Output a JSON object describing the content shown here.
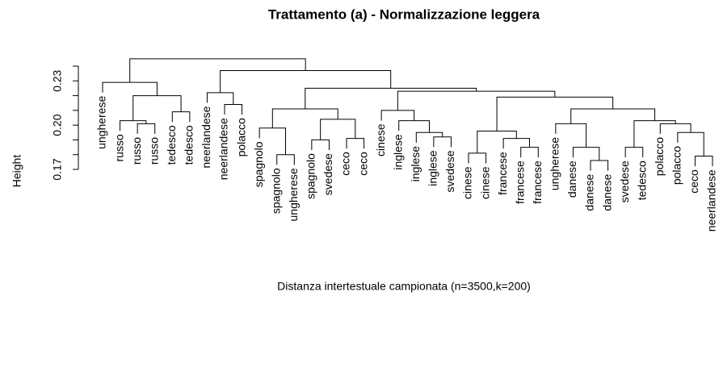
{
  "chart_data": {
    "type": "dendrogram",
    "title": "Trattamento (a) - Normalizzazione leggera",
    "x_label": "Distanza intertestuale campionata (n=3500,k=200)",
    "y_label": "Height",
    "ylim": [
      0.17,
      0.24
    ],
    "yticks": [
      0.17,
      {
        "value": 0.2,
        "label": "0.20"
      },
      0.23
    ],
    "yticks_minor": [
      0.18,
      0.19,
      0.21,
      0.22,
      0.24
    ],
    "color": "#000000",
    "tree": {
      "height": 0.245,
      "children": [
        {
          "height": 0.229,
          "children": [
            {
              "label": "ungherese"
            },
            {
              "height": 0.22,
              "children": [
                {
                  "height": 0.203,
                  "children": [
                    {
                      "label": "russo"
                    },
                    {
                      "height": 0.201,
                      "children": [
                        {
                          "label": "russo"
                        },
                        {
                          "label": "russo"
                        }
                      ]
                    }
                  ]
                },
                {
                  "height": 0.209,
                  "children": [
                    {
                      "label": "tedesco"
                    },
                    {
                      "label": "tedesco"
                    }
                  ]
                }
              ]
            }
          ]
        },
        {
          "height": 0.237,
          "children": [
            {
              "height": 0.222,
              "children": [
                {
                  "label": "neerlandese"
                },
                {
                  "height": 0.214,
                  "children": [
                    {
                      "label": "neerlandese"
                    },
                    {
                      "label": "polacco"
                    }
                  ]
                }
              ]
            },
            {
              "height": 0.225,
              "children": [
                {
                  "height": 0.211,
                  "children": [
                    {
                      "height": 0.198,
                      "children": [
                        {
                          "label": "spagnolo"
                        },
                        {
                          "height": 0.18,
                          "children": [
                            {
                              "label": "spagnolo"
                            },
                            {
                              "label": "ungherese"
                            }
                          ]
                        }
                      ]
                    },
                    {
                      "height": 0.204,
                      "children": [
                        {
                          "height": 0.19,
                          "children": [
                            {
                              "label": "spagnolo"
                            },
                            {
                              "label": "svedese"
                            }
                          ]
                        },
                        {
                          "height": 0.191,
                          "children": [
                            {
                              "label": "ceco"
                            },
                            {
                              "label": "ceco"
                            }
                          ]
                        }
                      ]
                    }
                  ]
                },
                {
                  "height": 0.223,
                  "children": [
                    {
                      "height": 0.21,
                      "children": [
                        {
                          "label": "cinese"
                        },
                        {
                          "height": 0.203,
                          "children": [
                            {
                              "label": "inglese"
                            },
                            {
                              "height": 0.195,
                              "children": [
                                {
                                  "label": "inglese"
                                },
                                {
                                  "height": 0.192,
                                  "children": [
                                    {
                                      "label": "inglese"
                                    },
                                    {
                                      "label": "svedese"
                                    }
                                  ]
                                }
                              ]
                            }
                          ]
                        }
                      ]
                    },
                    {
                      "height": 0.219,
                      "children": [
                        {
                          "height": 0.196,
                          "children": [
                            {
                              "height": 0.181,
                              "children": [
                                {
                                  "label": "cinese"
                                },
                                {
                                  "label": "cinese"
                                }
                              ]
                            },
                            {
                              "height": 0.191,
                              "children": [
                                {
                                  "label": "francese"
                                },
                                {
                                  "height": 0.185,
                                  "children": [
                                    {
                                      "label": "francese"
                                    },
                                    {
                                      "label": "francese"
                                    }
                                  ]
                                }
                              ]
                            }
                          ]
                        },
                        {
                          "height": 0.211,
                          "children": [
                            {
                              "height": 0.201,
                              "children": [
                                {
                                  "label": "ungherese"
                                },
                                {
                                  "height": 0.185,
                                  "children": [
                                    {
                                      "label": "danese"
                                    },
                                    {
                                      "height": 0.176,
                                      "children": [
                                        {
                                          "label": "danese"
                                        },
                                        {
                                          "label": "danese"
                                        }
                                      ]
                                    }
                                  ]
                                }
                              ]
                            },
                            {
                              "height": 0.203,
                              "children": [
                                {
                                  "height": 0.185,
                                  "children": [
                                    {
                                      "label": "svedese"
                                    },
                                    {
                                      "label": "tedesco"
                                    }
                                  ]
                                },
                                {
                                  "height": 0.201,
                                  "children": [
                                    {
                                      "label": "polacco"
                                    },
                                    {
                                      "height": 0.195,
                                      "children": [
                                        {
                                          "label": "polacco"
                                        },
                                        {
                                          "height": 0.179,
                                          "children": [
                                            {
                                              "label": "ceco"
                                            },
                                            {
                                              "label": "neerlandese"
                                            }
                                          ]
                                        }
                                      ]
                                    }
                                  ]
                                }
                              ]
                            }
                          ]
                        }
                      ]
                    }
                  ]
                }
              ]
            }
          ]
        }
      ]
    }
  }
}
